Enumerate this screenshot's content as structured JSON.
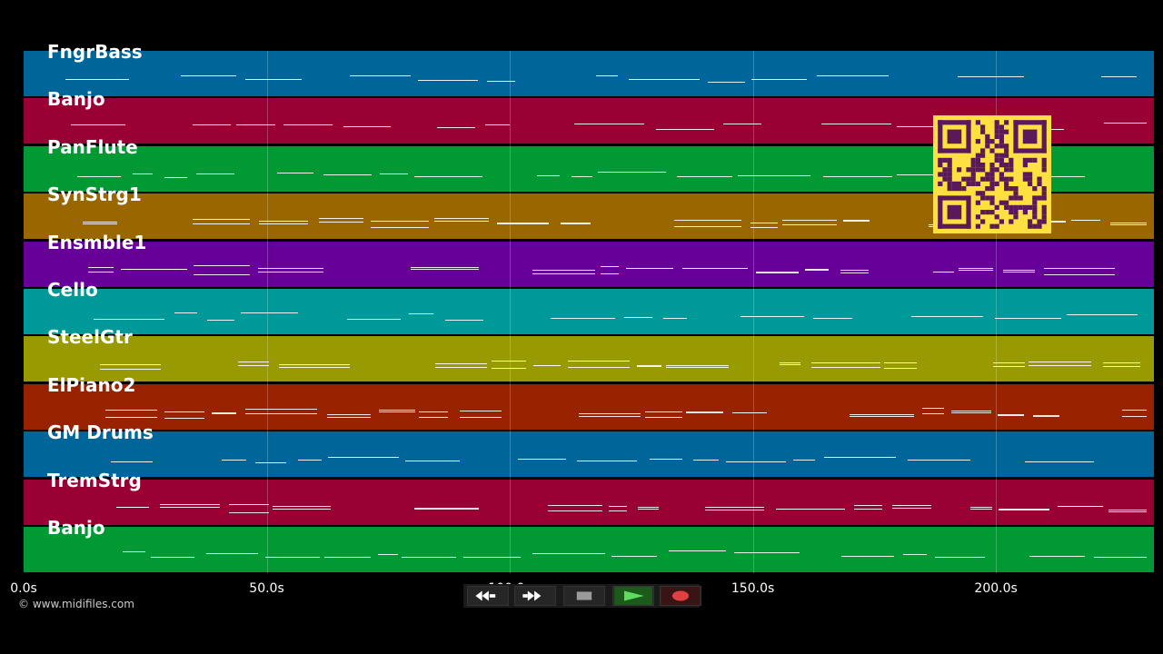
{
  "tracks": [
    {
      "name": "FngrBass",
      "color": "#006699"
    },
    {
      "name": "Banjo",
      "color": "#990033"
    },
    {
      "name": "PanFlute",
      "color": "#009933"
    },
    {
      "name": "SynStrg1",
      "color": "#996600"
    },
    {
      "name": "Ensmble1",
      "color": "#660099"
    },
    {
      "name": "Cello",
      "color": "#009999"
    },
    {
      "name": "SteelGtr",
      "color": "#999900"
    },
    {
      "name": "ElPiano2",
      "color": "#992200"
    },
    {
      "name": "GM Drums",
      "color": "#006699"
    },
    {
      "name": "TremStrg",
      "color": "#990033"
    },
    {
      "name": "Banjo",
      "color": "#009933"
    }
  ],
  "timeline": {
    "max_seconds": 232.5,
    "ticks": [
      {
        "value": 0,
        "label": "0.0s"
      },
      {
        "value": 50,
        "label": "50.0s"
      },
      {
        "value": 100,
        "label": "100.0s"
      },
      {
        "value": 150,
        "label": "150.0s"
      },
      {
        "value": 200,
        "label": "200.0s"
      }
    ]
  },
  "copyright": "© www.midifiles.com",
  "controls": [
    {
      "name": "rewind-button",
      "icon": "rewind-icon"
    },
    {
      "name": "fast-forward-button",
      "icon": "fast-forward-icon"
    },
    {
      "name": "stop-button",
      "icon": "stop-icon"
    },
    {
      "name": "play-button",
      "icon": "play-icon"
    },
    {
      "name": "record-button",
      "icon": "record-icon"
    }
  ],
  "qr_code": {
    "icon": "qr-code-icon",
    "color": "#5a1a5a",
    "background": "#ffe040"
  }
}
